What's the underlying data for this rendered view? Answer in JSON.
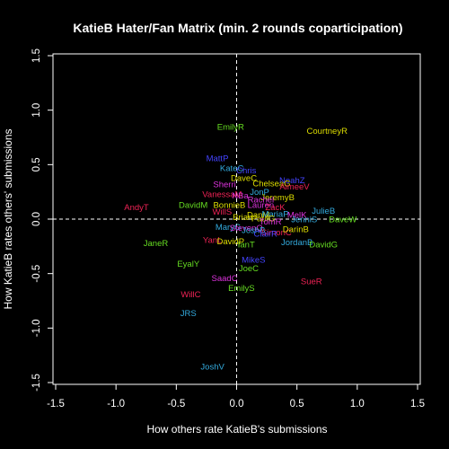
{
  "chart_data": {
    "type": "scatter",
    "title": "KatieB Hater/Fan Matrix (min. 2 rounds coparticipation)",
    "xlabel": "How others rate KatieB's submissions",
    "ylabel": "How KatieB rates others' submissions",
    "xlim": [
      -1.5,
      1.5
    ],
    "ylim": [
      -1.5,
      1.5
    ],
    "x_ticks": [
      "-1.5",
      "-1.0",
      "-0.5",
      "0.0",
      "0.5",
      "1.0",
      "1.5"
    ],
    "y_ticks": [
      "-1.5",
      "-1.0",
      "-0.5",
      "0.0",
      "0.5",
      "1.0",
      "1.5"
    ],
    "grid": false,
    "reference_lines": {
      "x": 0,
      "y": 0,
      "style": "dashed"
    },
    "colors": {
      "background": "#000000",
      "foreground": "#ffffff",
      "green": "#66dd22",
      "yellow": "#dddd00",
      "blue": "#4444ff",
      "cyan": "#33aadd",
      "red": "#ee2255",
      "magenta": "#dd33dd"
    },
    "points": [
      {
        "label": "EmilyR",
        "x": -0.05,
        "y": 0.85,
        "color": "green"
      },
      {
        "label": "CourtneyR",
        "x": 0.75,
        "y": 0.81,
        "color": "yellow"
      },
      {
        "label": "MattP",
        "x": -0.16,
        "y": 0.56,
        "color": "blue"
      },
      {
        "label": "KateC",
        "x": -0.04,
        "y": 0.47,
        "color": "cyan"
      },
      {
        "label": "Chris",
        "x": 0.08,
        "y": 0.45,
        "color": "blue"
      },
      {
        "label": "DaveC",
        "x": 0.06,
        "y": 0.38,
        "color": "yellow"
      },
      {
        "label": "NoahZ",
        "x": 0.46,
        "y": 0.36,
        "color": "blue"
      },
      {
        "label": "ChelseaG",
        "x": 0.29,
        "y": 0.33,
        "color": "yellow"
      },
      {
        "label": "Sherri",
        "x": -0.1,
        "y": 0.32,
        "color": "magenta"
      },
      {
        "label": "AimeeV",
        "x": 0.48,
        "y": 0.3,
        "color": "red"
      },
      {
        "label": "JonP",
        "x": 0.19,
        "y": 0.25,
        "color": "cyan"
      },
      {
        "label": "VanessaM",
        "x": -0.12,
        "y": 0.23,
        "color": "red"
      },
      {
        "label": "NBa",
        "x": 0.03,
        "y": 0.22,
        "color": "magenta"
      },
      {
        "label": "JeremyB",
        "x": 0.34,
        "y": 0.2,
        "color": "yellow"
      },
      {
        "label": "Rachel",
        "x": 0.2,
        "y": 0.18,
        "color": "magenta"
      },
      {
        "label": "AndyT",
        "x": -0.83,
        "y": 0.11,
        "color": "red"
      },
      {
        "label": "DavidM",
        "x": -0.36,
        "y": 0.13,
        "color": "green"
      },
      {
        "label": "BonnieB",
        "x": -0.06,
        "y": 0.13,
        "color": "yellow"
      },
      {
        "label": "Lauren",
        "x": 0.2,
        "y": 0.13,
        "color": "magenta"
      },
      {
        "label": "ZacK",
        "x": 0.32,
        "y": 0.11,
        "color": "red"
      },
      {
        "label": "JulieB",
        "x": 0.72,
        "y": 0.08,
        "color": "cyan"
      },
      {
        "label": "WillS",
        "x": -0.12,
        "y": 0.07,
        "color": "red"
      },
      {
        "label": "DanM",
        "x": 0.18,
        "y": 0.04,
        "color": "yellow"
      },
      {
        "label": "MariaP",
        "x": 0.32,
        "y": 0.05,
        "color": "cyan"
      },
      {
        "label": "MelK",
        "x": 0.5,
        "y": 0.04,
        "color": "magenta"
      },
      {
        "label": "Brian",
        "x": 0.05,
        "y": 0.02,
        "color": "yellow"
      },
      {
        "label": "PaulG",
        "x": 0.22,
        "y": 0.01,
        "color": "yellow"
      },
      {
        "label": "JenniS",
        "x": 0.56,
        "y": 0.0,
        "color": "cyan"
      },
      {
        "label": "DaveW",
        "x": 0.88,
        "y": 0.0,
        "color": "green"
      },
      {
        "label": "TomR",
        "x": 0.28,
        "y": -0.02,
        "color": "magenta"
      },
      {
        "label": "MaryG",
        "x": -0.07,
        "y": -0.07,
        "color": "cyan"
      },
      {
        "label": "StevenQ",
        "x": 0.08,
        "y": -0.08,
        "color": "magenta"
      },
      {
        "label": "JoshB",
        "x": 0.14,
        "y": -0.1,
        "color": "cyan"
      },
      {
        "label": "SimonC",
        "x": 0.33,
        "y": -0.12,
        "color": "red"
      },
      {
        "label": "DarinB",
        "x": 0.49,
        "y": -0.09,
        "color": "yellow"
      },
      {
        "label": "ClairR",
        "x": 0.24,
        "y": -0.13,
        "color": "blue"
      },
      {
        "label": "JaneR",
        "x": -0.67,
        "y": -0.22,
        "color": "green"
      },
      {
        "label": "YanL",
        "x": -0.2,
        "y": -0.19,
        "color": "red"
      },
      {
        "label": "DavidP",
        "x": -0.05,
        "y": -0.2,
        "color": "yellow"
      },
      {
        "label": "IanT",
        "x": 0.08,
        "y": -0.23,
        "color": "green"
      },
      {
        "label": "JordanB",
        "x": 0.5,
        "y": -0.21,
        "color": "cyan"
      },
      {
        "label": "DavidG",
        "x": 0.72,
        "y": -0.23,
        "color": "green"
      },
      {
        "label": "MikeS",
        "x": 0.14,
        "y": -0.37,
        "color": "blue"
      },
      {
        "label": "EyalY",
        "x": -0.4,
        "y": -0.41,
        "color": "green"
      },
      {
        "label": "JoeC",
        "x": 0.1,
        "y": -0.45,
        "color": "green"
      },
      {
        "label": "SaadC",
        "x": -0.1,
        "y": -0.54,
        "color": "magenta"
      },
      {
        "label": "SueR",
        "x": 0.62,
        "y": -0.57,
        "color": "red"
      },
      {
        "label": "EmilyS",
        "x": 0.04,
        "y": -0.63,
        "color": "green"
      },
      {
        "label": "WillC",
        "x": -0.38,
        "y": -0.69,
        "color": "red"
      },
      {
        "label": "JRS",
        "x": -0.4,
        "y": -0.86,
        "color": "cyan"
      },
      {
        "label": "JoshV",
        "x": -0.2,
        "y": -1.35,
        "color": "cyan"
      }
    ]
  }
}
